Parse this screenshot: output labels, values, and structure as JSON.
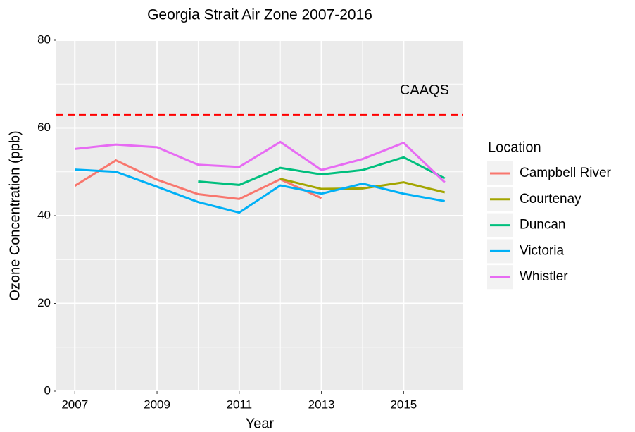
{
  "chart_data": {
    "type": "line",
    "title": "Georgia Strait Air Zone 2007-2016",
    "x_label": "Year",
    "y_label": "Ozone Concentration (ppb)",
    "legend_title": "Location",
    "legend_position": "right",
    "grid": true,
    "x": [
      2007,
      2008,
      2009,
      2010,
      2011,
      2012,
      2013,
      2014,
      2015,
      2016
    ],
    "xlim": [
      2006.55,
      2016.45
    ],
    "xticks": [
      2007,
      2009,
      2011,
      2013,
      2015
    ],
    "ylim": [
      0,
      80
    ],
    "yticks": [
      0,
      20,
      40,
      60,
      80
    ],
    "reference_line": {
      "value": 63,
      "label": "CAAQS",
      "color": "#ff0000"
    },
    "series": [
      {
        "name": "Campbell River",
        "color": "#F8766D",
        "values": [
          46.8,
          52.6,
          48.2,
          44.9,
          43.8,
          48.3,
          44.0,
          null,
          null,
          null
        ]
      },
      {
        "name": "Courtenay",
        "color": "#A3A500",
        "values": [
          null,
          null,
          null,
          null,
          null,
          48.4,
          46.1,
          46.2,
          47.6,
          45.3
        ]
      },
      {
        "name": "Duncan",
        "color": "#00BF7D",
        "values": [
          null,
          null,
          null,
          47.8,
          47.0,
          50.9,
          49.4,
          50.4,
          53.3,
          48.5
        ]
      },
      {
        "name": "Victoria",
        "color": "#00B0F6",
        "values": [
          50.5,
          50.0,
          46.6,
          43.1,
          40.7,
          46.9,
          45.0,
          47.3,
          45.0,
          43.3
        ]
      },
      {
        "name": "Whistler",
        "color": "#E76BF3",
        "values": [
          55.2,
          56.2,
          55.6,
          51.6,
          51.1,
          56.8,
          50.4,
          52.9,
          56.6,
          47.6
        ]
      }
    ]
  }
}
